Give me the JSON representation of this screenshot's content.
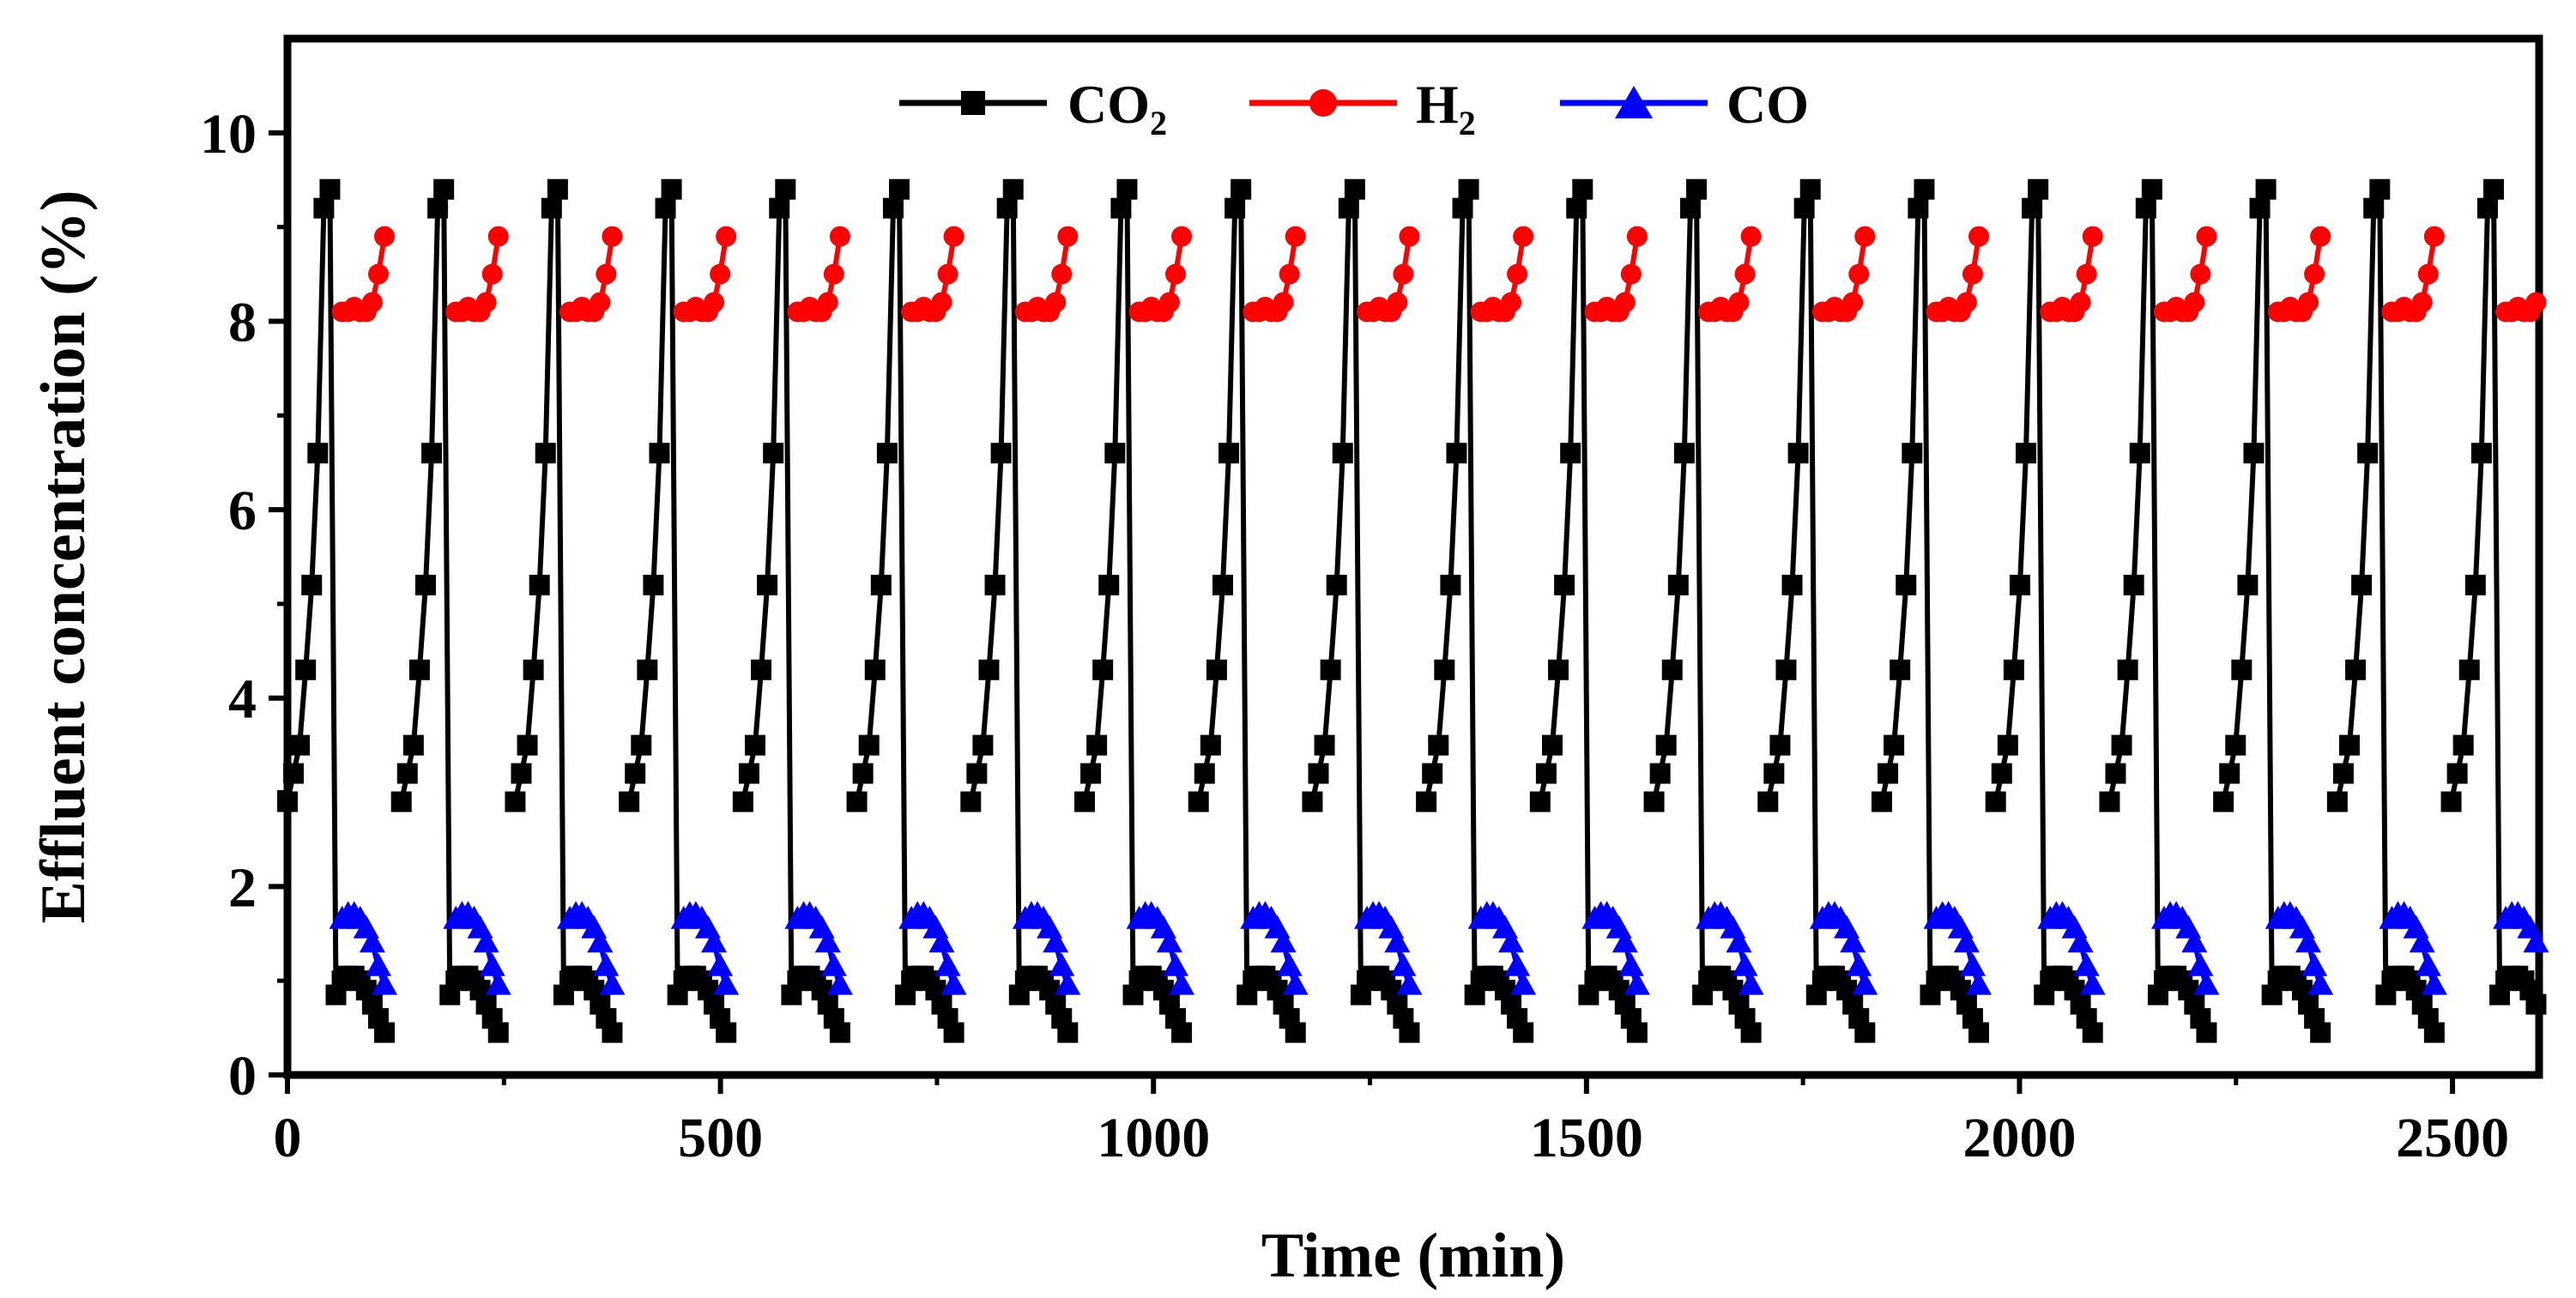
{
  "chart_data": {
    "type": "line",
    "title": "",
    "xlabel": "Time (min)",
    "ylabel": "Effluent concentration (%)",
    "xlim": [
      0,
      2600
    ],
    "ylim": [
      0,
      11
    ],
    "xticks": [
      0,
      500,
      1000,
      1500,
      2000,
      2500
    ],
    "xtick_labels": [
      "0",
      "500",
      "1000",
      "1500",
      "2000",
      "2500"
    ],
    "yticks": [
      0,
      2,
      4,
      6,
      8,
      10
    ],
    "ytick_labels": [
      "0",
      "2",
      "4",
      "6",
      "8",
      "10"
    ],
    "legend": {
      "position": "top"
    },
    "cycles": 20,
    "cycle_period_min": 131.5,
    "series": [
      {
        "name": "CO",
        "sub": "2",
        "color": "#000000",
        "marker": "square",
        "profile_offsets_min": [
          0,
          7,
          14,
          21,
          28,
          35,
          42,
          49,
          56,
          63,
          70,
          77,
          84,
          91,
          98,
          105,
          112
        ],
        "profile_values": [
          2.9,
          3.2,
          3.5,
          4.3,
          5.2,
          6.6,
          9.2,
          9.4,
          0.85,
          1.0,
          1.05,
          1.05,
          1.0,
          0.9,
          0.75,
          0.6,
          0.45
        ]
      },
      {
        "name": "H",
        "sub": "2",
        "color": "#ff0000",
        "marker": "circle",
        "profile_offsets_min": [
          63,
          70,
          77,
          84,
          91,
          98,
          105,
          112
        ],
        "profile_values": [
          8.1,
          8.1,
          8.15,
          8.1,
          8.1,
          8.2,
          8.5,
          8.9
        ]
      },
      {
        "name": "CO",
        "sub": "",
        "color": "#0000ff",
        "marker": "triangle",
        "profile_offsets_min": [
          63,
          70,
          77,
          84,
          91,
          98,
          105,
          112
        ],
        "profile_values": [
          1.65,
          1.7,
          1.7,
          1.65,
          1.55,
          1.4,
          1.15,
          0.95
        ]
      }
    ]
  }
}
